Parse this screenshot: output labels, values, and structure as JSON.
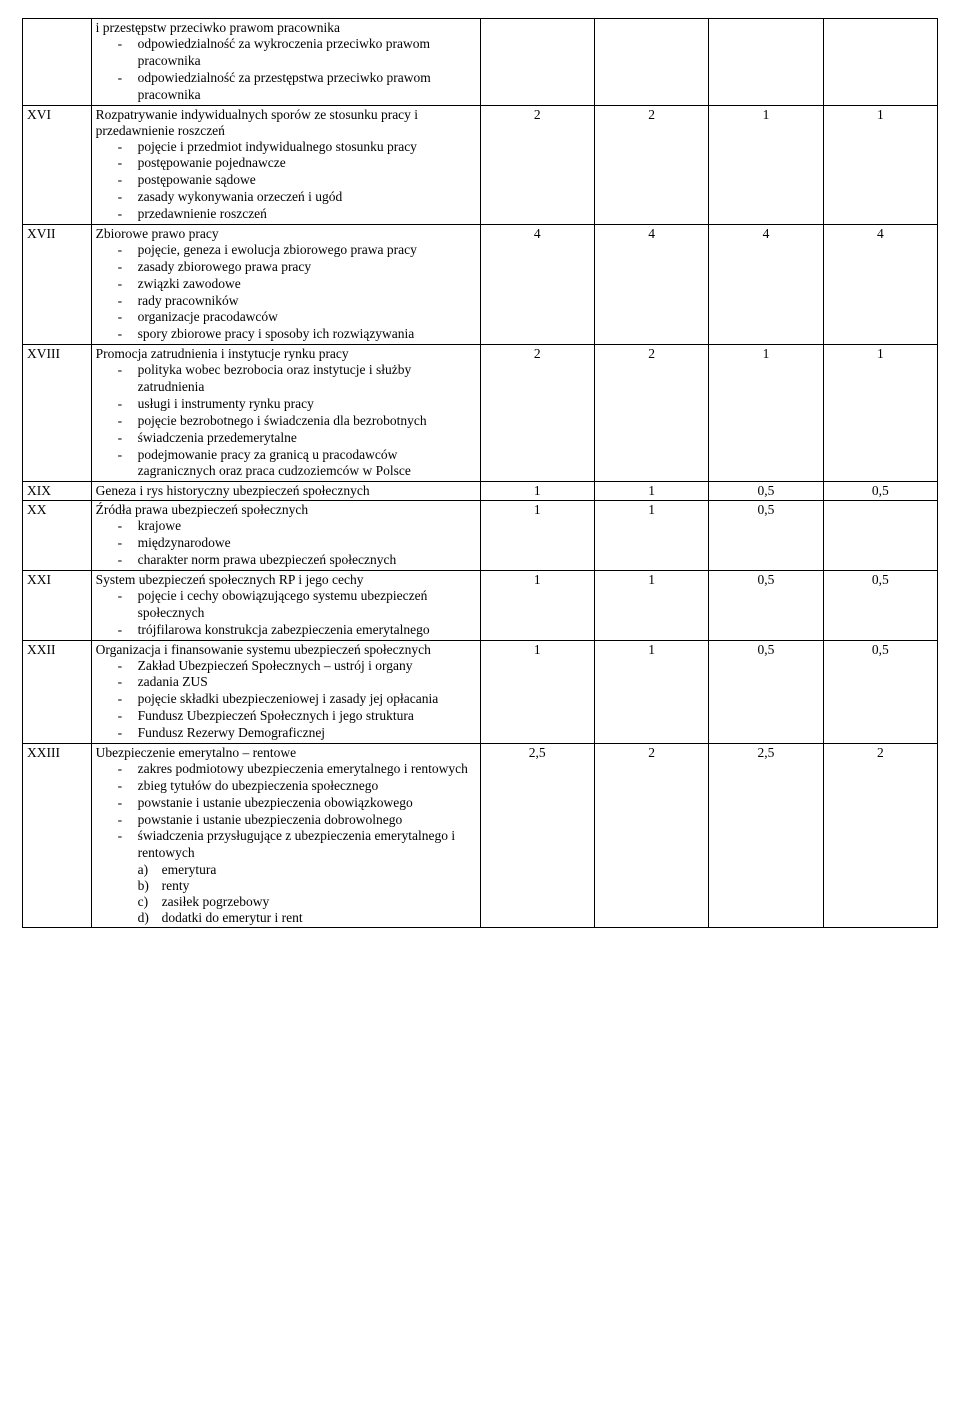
{
  "rows": [
    {
      "num": "",
      "head": "i przestępstw przeciwko prawom pracownika",
      "items": [
        "odpowiedzialność za wykroczenia przeciwko prawom pracownika",
        "odpowiedzialność za przestępstwa przeciwko prawom pracownika"
      ],
      "v1": "",
      "v2": "",
      "v3": "",
      "v4": ""
    },
    {
      "num": "XVI",
      "head": "Rozpatrywanie indywidualnych sporów ze stosunku pracy i przedawnienie roszczeń",
      "items": [
        "pojęcie i przedmiot  indywidualnego stosunku pracy",
        "postępowanie pojednawcze",
        "postępowanie sądowe",
        "zasady wykonywania orzeczeń i ugód",
        "przedawnienie roszczeń"
      ],
      "v1": "2",
      "v2": "2",
      "v3": "1",
      "v4": "1"
    },
    {
      "num": "XVII",
      "head": "Zbiorowe prawo pracy",
      "items": [
        "pojęcie, geneza i ewolucja zbiorowego prawa pracy",
        "zasady zbiorowego prawa pracy",
        "związki zawodowe",
        "rady pracowników",
        "organizacje pracodawców",
        "spory zbiorowe pracy i sposoby ich rozwiązywania"
      ],
      "v1": "4",
      "v2": "4",
      "v3": "4",
      "v4": "4"
    },
    {
      "num": "XVIII",
      "head": "Promocja zatrudnienia i instytucje rynku pracy",
      "items": [
        "polityka wobec bezrobocia oraz instytucje i służby zatrudnienia",
        "usługi i instrumenty rynku pracy",
        "pojęcie bezrobotnego i świadczenia dla bezrobotnych",
        "świadczenia przedemerytalne",
        "podejmowanie pracy za granicą u pracodawców zagranicznych oraz praca cudzoziemców w Polsce"
      ],
      "v1": "2",
      "v2": "2",
      "v3": "1",
      "v4": "1"
    },
    {
      "num": "XIX",
      "head": "Geneza i rys historyczny ubezpieczeń społecznych",
      "items": [],
      "v1": "1",
      "v2": "1",
      "v3": "0,5",
      "v4": "0,5"
    },
    {
      "num": "XX",
      "head": "Źródła prawa ubezpieczeń społecznych",
      "items": [
        "krajowe",
        "międzynarodowe",
        "charakter norm prawa ubezpieczeń społecznych"
      ],
      "v1": "1",
      "v2": "1",
      "v3": "0,5",
      "v4": ""
    },
    {
      "num": "XXI",
      "head": "System ubezpieczeń społecznych RP i jego cechy",
      "items": [
        "pojęcie i cechy obowiązującego systemu ubezpieczeń społecznych",
        "trójfilarowa konstrukcja zabezpieczenia emerytalnego"
      ],
      "v1": "1",
      "v2": "1",
      "v3": "0,5",
      "v4": "0,5"
    },
    {
      "num": "XXII",
      "head": "Organizacja i finansowanie systemu ubezpieczeń społecznych",
      "items": [
        "Zakład Ubezpieczeń Społecznych – ustrój i organy",
        "zadania ZUS",
        "pojęcie składki ubezpieczeniowej i zasady jej opłacania",
        "Fundusz Ubezpieczeń Społecznych i jego struktura",
        "Fundusz Rezerwy Demograficznej"
      ],
      "v1": "1",
      "v2": "1",
      "v3": "0,5",
      "v4": "0,5"
    },
    {
      "num": "XXIII",
      "head": "Ubezpieczenie emerytalno – rentowe",
      "items": [
        "zakres podmiotowy ubezpieczenia emerytalnego i rentowych",
        "zbieg tytułów do ubezpieczenia społecznego",
        "powstanie i ustanie ubezpieczenia obowiązkowego",
        "powstanie i ustanie ubezpieczenia dobrowolnego",
        "świadczenia przysługujące z ubezpieczenia emerytalnego i rentowych"
      ],
      "subitems": [
        {
          "marker": "a)",
          "text": "emerytura"
        },
        {
          "marker": "b)",
          "text": "renty"
        },
        {
          "marker": "c)",
          "text": "zasiłek pogrzebowy"
        },
        {
          "marker": "d)",
          "text": "dodatki do emerytur i rent"
        }
      ],
      "v1": "2,5",
      "v2": "2",
      "v3": "2,5",
      "v4": "2"
    }
  ]
}
